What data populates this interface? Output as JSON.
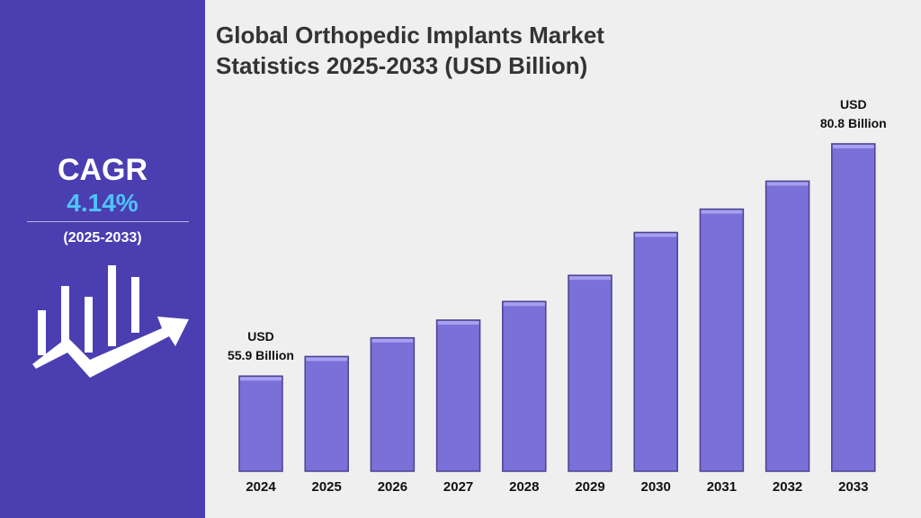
{
  "sidebar": {
    "label": "CAGR",
    "rate": "4.14%",
    "period": "(2025-2033)"
  },
  "chart_data": {
    "type": "bar",
    "title": "Global Orthopedic Implants Market Statistics 2025-2033 (USD Billion)",
    "categories": [
      "2024",
      "2025",
      "2026",
      "2027",
      "2028",
      "2029",
      "2030",
      "2031",
      "2032",
      "2033"
    ],
    "values": [
      55.9,
      58.0,
      60.0,
      61.9,
      63.9,
      66.7,
      71.3,
      73.8,
      76.8,
      80.8
    ],
    "value_labels": [
      "USD\n55.9 Billion",
      null,
      null,
      null,
      null,
      null,
      null,
      null,
      null,
      "USD\n80.8 Billion"
    ],
    "color": "#7b70d8",
    "ylim": [
      45.7,
      86
    ]
  }
}
